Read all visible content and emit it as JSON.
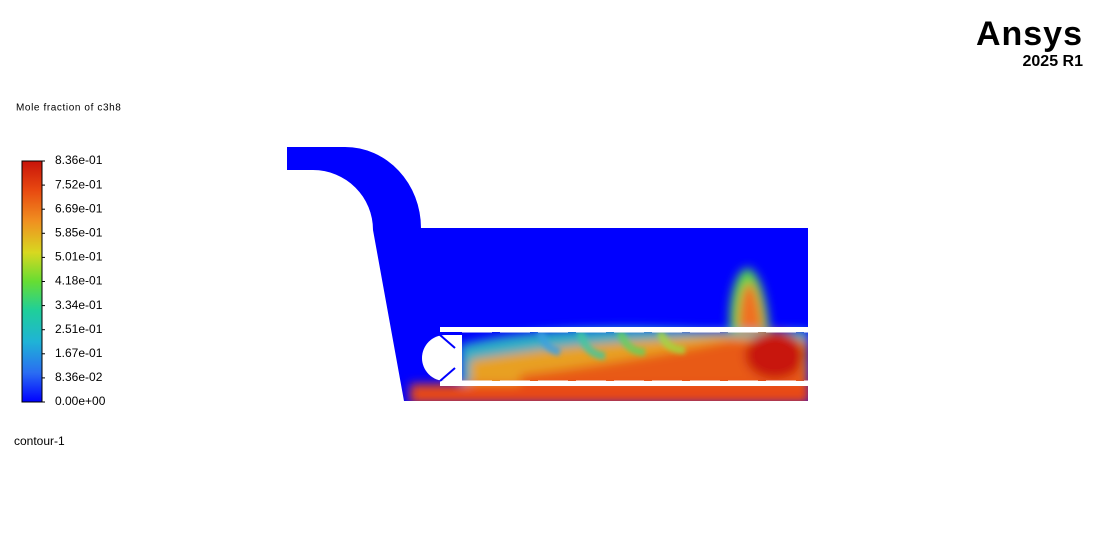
{
  "logo": {
    "brand": "Ansys",
    "version": "2025 R1"
  },
  "colorbar": {
    "title": "Mole fraction of c3h8",
    "labels": [
      "8.36e-01",
      "7.52e-01",
      "6.69e-01",
      "5.85e-01",
      "5.01e-01",
      "4.18e-01",
      "3.34e-01",
      "2.51e-01",
      "1.67e-01",
      "8.36e-02",
      "0.00e+00"
    ]
  },
  "view_name": "contour-1"
}
